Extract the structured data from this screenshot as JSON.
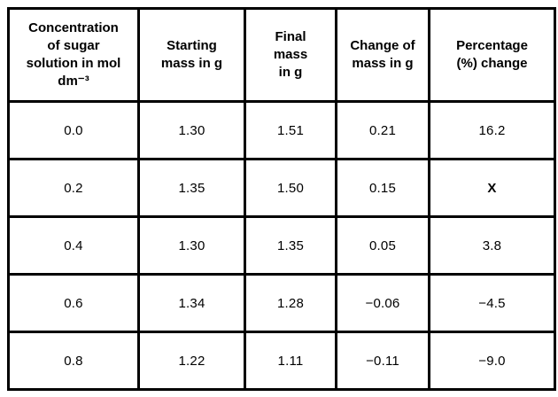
{
  "table": {
    "headers": [
      "Concentration\nof sugar\nsolution in mol\ndm⁻³",
      "Starting\nmass in g",
      "Final\nmass\nin g",
      "Change of\nmass in g",
      "Percentage\n(%) change"
    ],
    "rows": [
      [
        "0.0",
        "1.30",
        "1.51",
        "0.21",
        "16.2"
      ],
      [
        "0.2",
        "1.35",
        "1.50",
        "0.15",
        "X"
      ],
      [
        "0.4",
        "1.30",
        "1.35",
        "0.05",
        "3.8"
      ],
      [
        "0.6",
        "1.34",
        "1.28",
        "−0.06",
        "−4.5"
      ],
      [
        "0.8",
        "1.22",
        "1.11",
        "−0.11",
        "−9.0"
      ]
    ],
    "colors": {
      "border": "#000000",
      "text": "#000000",
      "background": "#ffffff"
    }
  }
}
